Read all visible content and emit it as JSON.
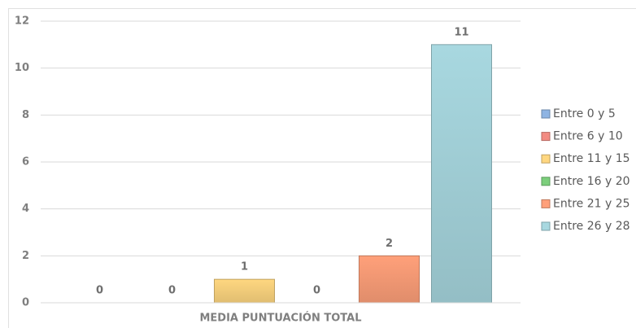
{
  "chart_data": {
    "type": "bar",
    "categories": [
      "MEDIA PUNTUACIÓN TOTAL"
    ],
    "series": [
      {
        "name": "Entre 0 y 5",
        "color": "#8eb4e3",
        "values": [
          0
        ]
      },
      {
        "name": "Entre 6 y 10",
        "color": "#f28b82",
        "values": [
          0
        ]
      },
      {
        "name": "Entre 11 y 15",
        "color": "#ffd780",
        "values": [
          1
        ]
      },
      {
        "name": "Entre 16 y 20",
        "color": "#7ccf7c",
        "values": [
          0
        ]
      },
      {
        "name": "Entre 21 y 25",
        "color": "#ffa07a",
        "values": [
          2
        ]
      },
      {
        "name": "Entre 26 y 28",
        "color": "#a8d8e0",
        "values": [
          11
        ]
      }
    ],
    "ylim": [
      0,
      12
    ],
    "yticks": [
      0,
      2,
      4,
      6,
      8,
      10,
      12
    ],
    "grid": true,
    "legend": "right"
  }
}
